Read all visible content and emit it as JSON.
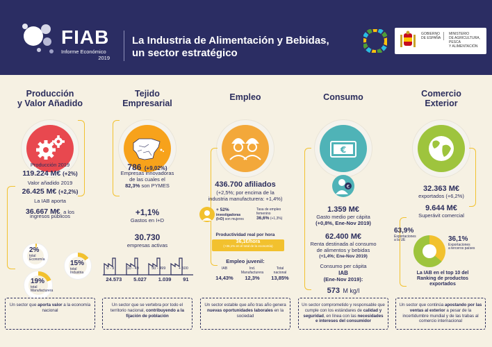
{
  "header": {
    "brand": "FIAB",
    "subtitle": "Informe Económico",
    "year": "2019",
    "title_line1": "La Industria de Alimentación y Bebidas,",
    "title_line2": "un sector estratégico",
    "gov_left_1": "GOBIERNO",
    "gov_left_2": "DE ESPAÑA",
    "gov_right_1": "MINISTERIO",
    "gov_right_2": "DE AGRICULTURA, PESCA",
    "gov_right_3": "Y ALIMENTACIÓN"
  },
  "colors": {
    "navy": "#2b2d63",
    "red": "#e8484f",
    "orange": "#f7a21b",
    "amber": "#f3a83a",
    "teal": "#4fb3b7",
    "green": "#9ec43d",
    "yellow": "#f2c12e"
  },
  "produccion": {
    "title_1": "Producción",
    "title_2": "y Valor Añadido",
    "icon": "gears-icon",
    "prod_label": "Producción 2019",
    "prod_value": "119.224 M€",
    "prod_change": "(+2%)",
    "va_label": "Valor añadido 2019",
    "va_value": "26.425 M€",
    "va_change": "(+2,2%)",
    "iab_label": "La IAB aporta",
    "iab_value": "36.667 M€",
    "iab_suffix": "a los",
    "iab_suffix2": "ingresos públicos",
    "pct_economia": "2%",
    "lbl_economia_1": "total",
    "lbl_economia_2": "Economía",
    "pct_industria": "15%",
    "lbl_industria_1": "total",
    "lbl_industria_2": "Industria",
    "pct_manufacturera": "19%",
    "lbl_manufacturera_1": "total",
    "lbl_manufacturera_2": "Manufacturera",
    "footer_1": "Un sector que ",
    "footer_2": "aporta valor",
    "footer_3": " a la economía nacional"
  },
  "tejido": {
    "title_1": "Tejido",
    "title_2": "Empresarial",
    "icon": "spain-map-icon",
    "empresas_value": "786",
    "empresas_change": "(+9,02%)",
    "empresas_text_1": "Empresas innovadoras",
    "empresas_text_2": "de las cuales el",
    "empresas_pct": "82,3%",
    "empresas_text_3": "son PYMES",
    "gastos_value": "+1,1%",
    "gastos_label": "Gastos en I+D",
    "activas_value": "30.730",
    "activas_label": "empresas activas",
    "factories": [
      {
        "range": "0 - 9",
        "count": "24.573"
      },
      {
        "range": "10 - 49",
        "count": "5.027"
      },
      {
        "range": "50 - 499",
        "count": "1.039"
      },
      {
        "range": "+ 500",
        "count": "91"
      }
    ],
    "footer_1": "Un sector que se vertebra por todo el territorio nacional, ",
    "footer_2": "contribuyendo a la fijación de población"
  },
  "empleo": {
    "title": "Empleo",
    "icon": "workers-icon",
    "afiliados_value": "436.700 afiliados",
    "afiliados_text_1": "(+2,5%; por encima de la",
    "afiliados_text_2": "industria manufacturera: +1,4%)",
    "invest_pct": "+ 52%",
    "invest_label_1": "investigadoras",
    "invest_label_2": "(I+D)",
    "invest_label_3": "son mujeres",
    "tasa_label_1": "Tasa de empleo",
    "tasa_label_2": "femenino",
    "tasa_value": "36,6%",
    "tasa_change": "(+1,3%)",
    "prod_hora_label": "Productividad real por hora",
    "prod_hora_value": "36,1€/hora",
    "prod_hora_note": "(+36,1% en el total de la economía)",
    "juvenil_label": "Empleo juvenil:",
    "juvenil_cols": [
      {
        "label_1": "IAB",
        "label_2": "",
        "value": "14,43%"
      },
      {
        "label_1": "Ind.",
        "label_2": "Manufacturera",
        "value": "12,3%"
      },
      {
        "label_1": "Total",
        "label_2": "nacional",
        "value": "13,85%"
      }
    ],
    "footer_1": "Un sector estable que año tras año genera ",
    "footer_2": "nuevas oportunidades laborales",
    "footer_3": " en la sociedad"
  },
  "consumo": {
    "title": "Consumo",
    "icon": "euro-card-icon",
    "gasto_value": "1.359 M€",
    "gasto_label": "Gasto medio per cápita",
    "gasto_change": "(+0,8%, Ene-Nov 2019)",
    "renta_value": "62.400 M€",
    "renta_label_1": "Renta destinada al consumo",
    "renta_label_2": "de alimentos y bebidas",
    "renta_change": "(+1,4%; Ene-Nov 2019)",
    "per_capita_label_1": "Consumo per cápita",
    "per_capita_label_2": "IAB",
    "per_capita_label_3": "(Ene-Nov 2019):",
    "per_capita_value": "573",
    "per_capita_unit": "M kg/l",
    "footer_1": "Un sector comprometido y responsable que cumple con los estándares de ",
    "footer_2": "calidad y seguridad",
    "footer_3": ", en línea con las ",
    "footer_4": "necesidades e intereses del consumidor"
  },
  "comercio": {
    "title_1": "Comercio",
    "title_2": "Exterior",
    "icon": "globe-icon",
    "export_value": "32.363 M€",
    "export_label": "exportados (+6,2%)",
    "superavit_value": "9.644 M€",
    "superavit_label": "Superávit comercial",
    "pct_ue": "63,9%",
    "lbl_ue_1": "Exportaciones",
    "lbl_ue_2": "a la UE",
    "pct_terceros": "36,1%",
    "lbl_terceros_1": "Exportaciones",
    "lbl_terceros_2": "a terceros países",
    "ranking_1": "La IAB en el top 10 del",
    "ranking_2": "Ranking de productos",
    "ranking_3": "exportados",
    "footer_1": "Un sector que continúa ",
    "footer_2": "apostando por las ventas al exterior",
    "footer_3": " a pesar de la incertidumbre mundial y de las trabas al comercio internacional"
  }
}
